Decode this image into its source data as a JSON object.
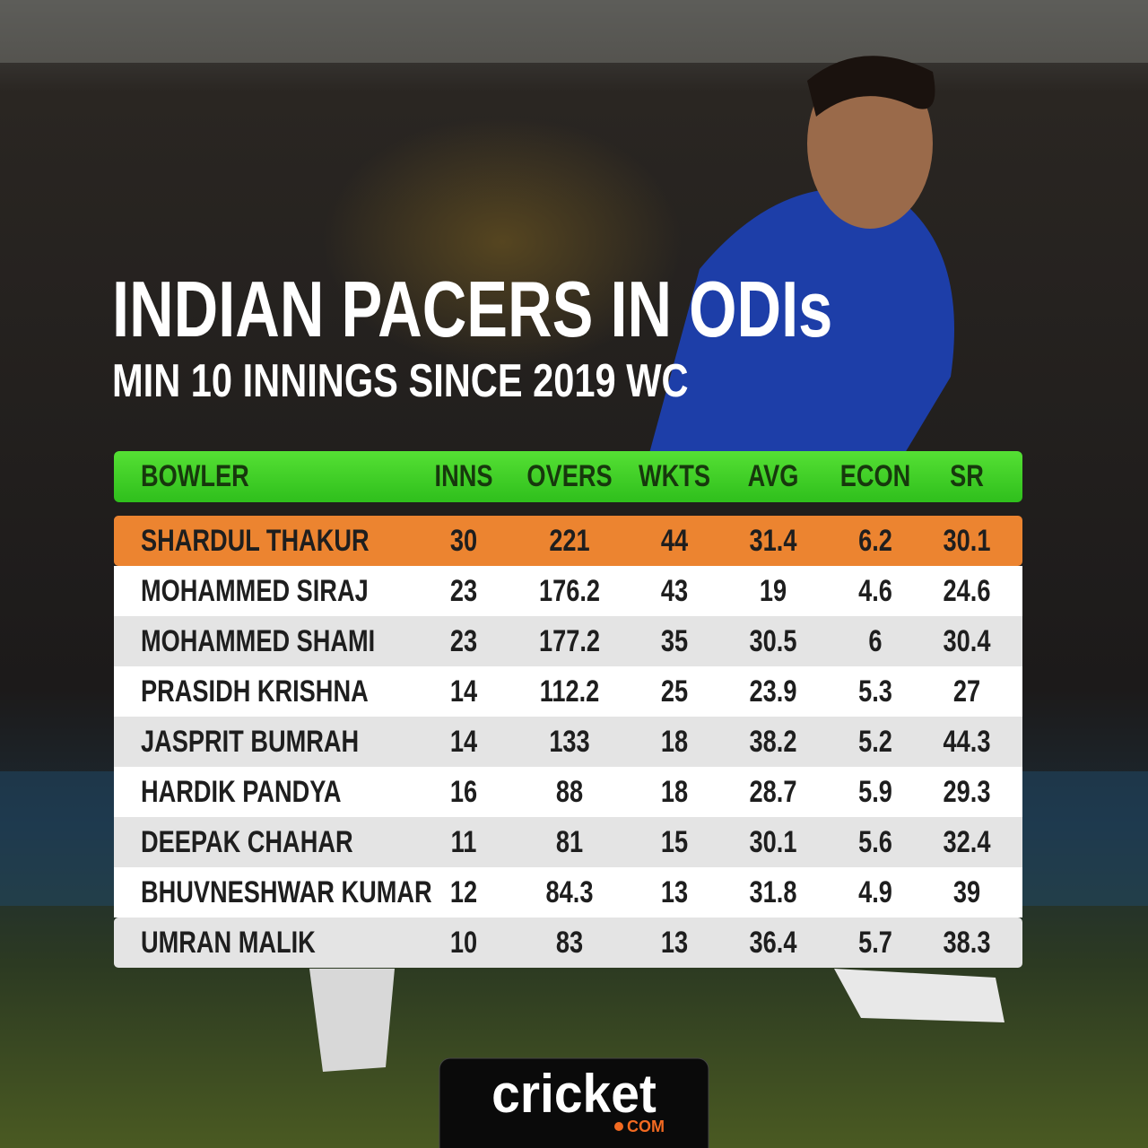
{
  "header": {
    "title": "INDIAN PACERS IN ODIs",
    "subtitle": "MIN 10 INNINGS SINCE 2019 WC"
  },
  "table": {
    "columns": [
      "BOWLER",
      "INNS",
      "OVERS",
      "WKTS",
      "AVG",
      "ECON",
      "SR"
    ],
    "rows": [
      [
        "SHARDUL THAKUR",
        30,
        221,
        44,
        31.4,
        6.2,
        30.1
      ],
      [
        "MOHAMMED SIRAJ",
        23,
        176.2,
        43,
        19,
        4.6,
        24.6
      ],
      [
        "MOHAMMED SHAMI",
        23,
        177.2,
        35,
        30.5,
        6,
        30.4
      ],
      [
        "PRASIDH KRISHNA",
        14,
        112.2,
        25,
        23.9,
        5.3,
        27
      ],
      [
        "JASPRIT BUMRAH",
        14,
        133,
        18,
        38.2,
        5.2,
        44.3
      ],
      [
        "HARDIK PANDYA",
        16,
        88,
        18,
        28.7,
        5.9,
        29.3
      ],
      [
        "DEEPAK CHAHAR",
        11,
        81,
        15,
        30.1,
        5.6,
        32.4
      ],
      [
        "BHUVNESHWAR KUMAR",
        12,
        84.3,
        13,
        31.8,
        4.9,
        39
      ],
      [
        "UMRAN MALIK",
        10,
        83,
        13,
        36.4,
        5.7,
        38.3
      ]
    ]
  },
  "logo": {
    "name": "cricket",
    "domain": "COM"
  }
}
